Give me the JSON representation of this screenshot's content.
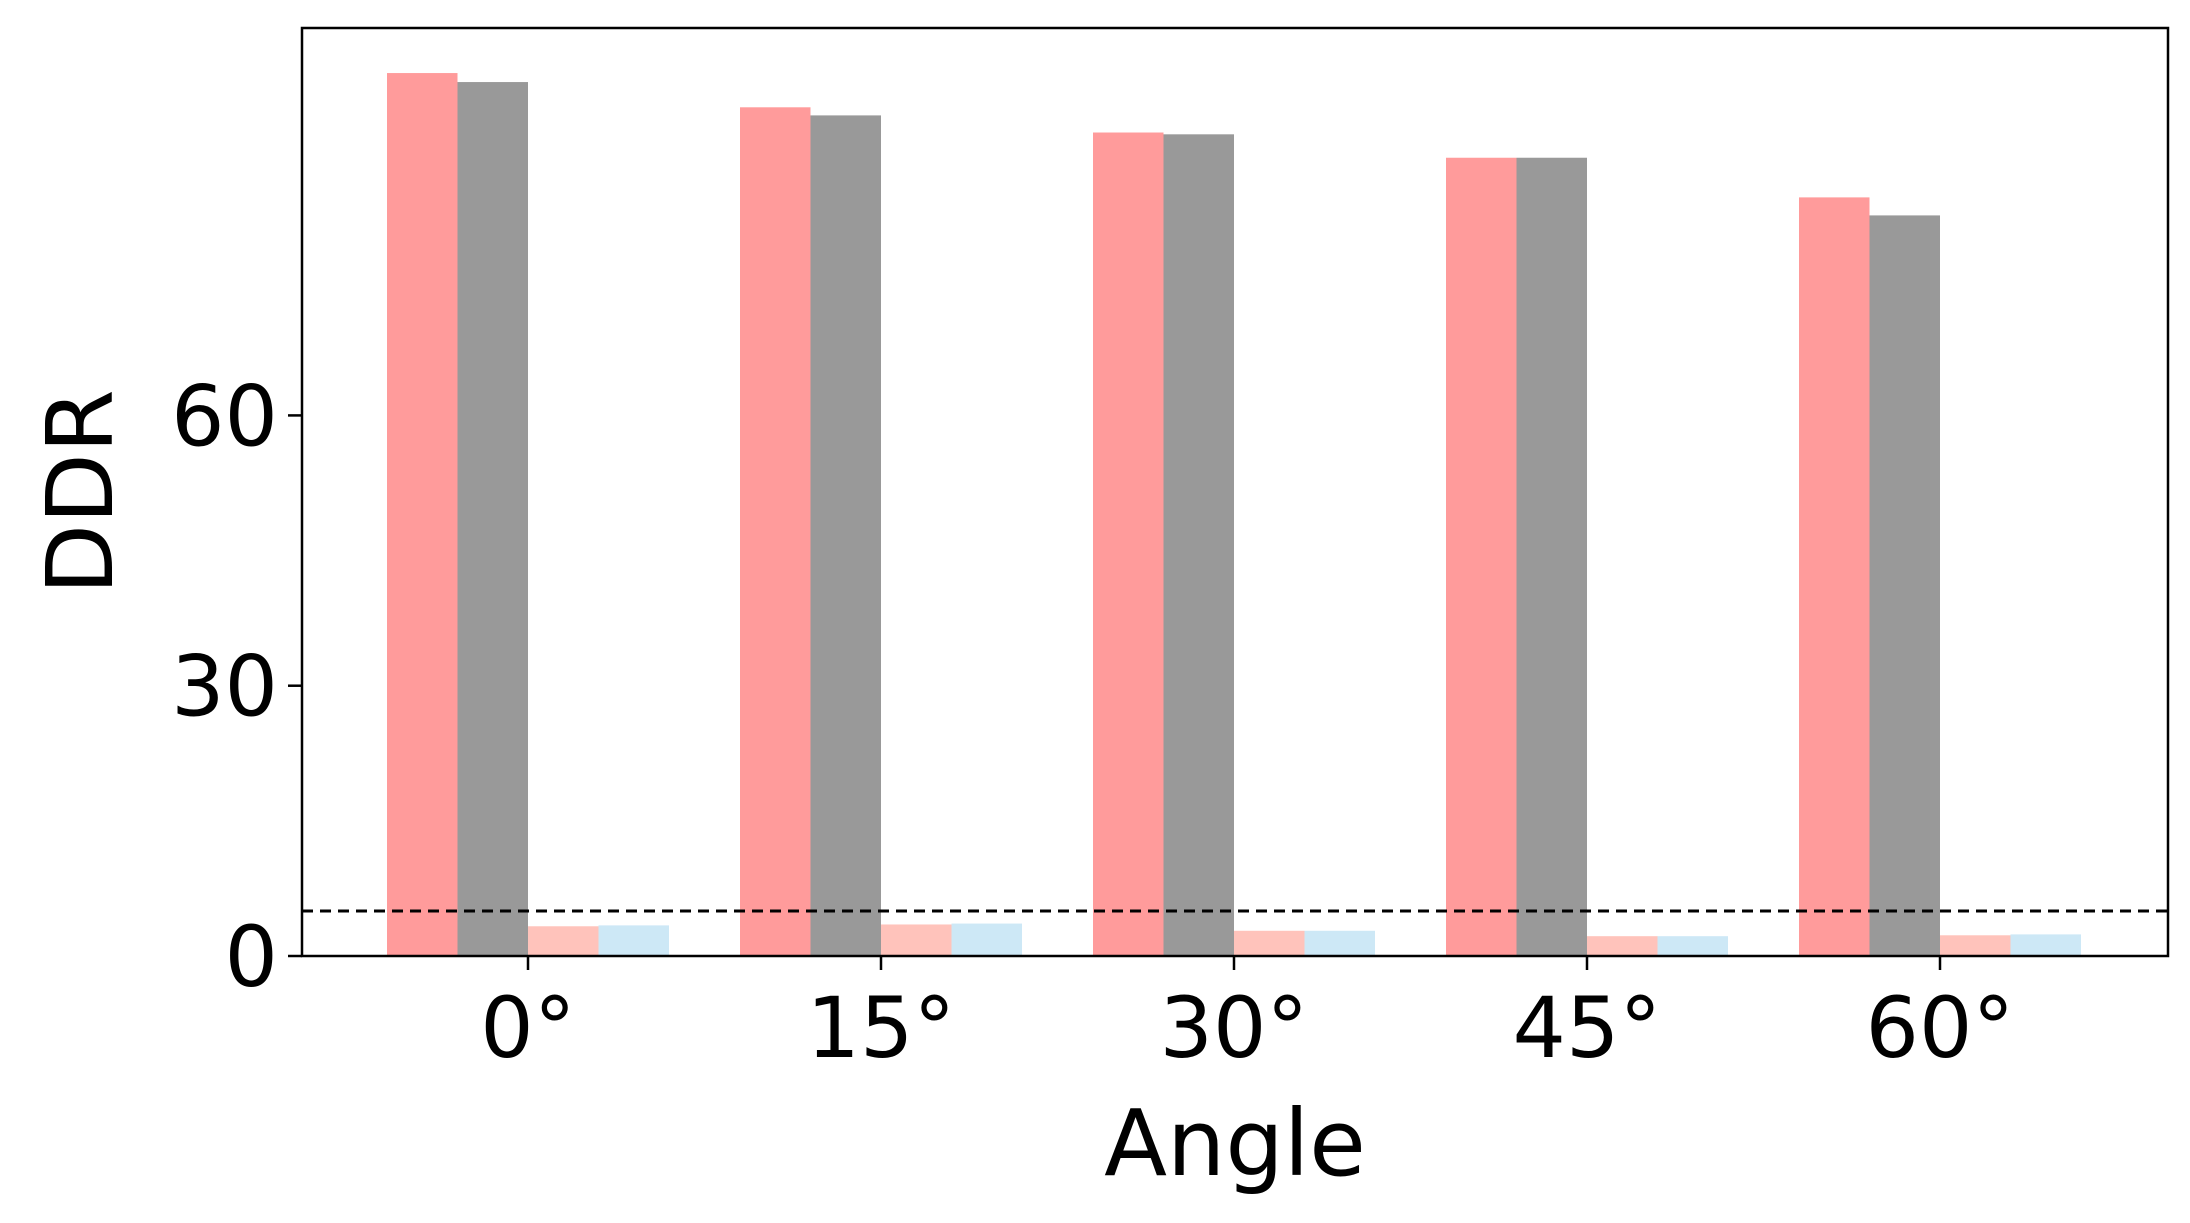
{
  "chart_data": {
    "type": "bar",
    "title": "",
    "xlabel": "Angle",
    "ylabel": "DDR",
    "categories": [
      "0°",
      "15°",
      "30°",
      "45°",
      "60°"
    ],
    "ylim": [
      0,
      103
    ],
    "yticks": [
      0,
      30,
      60
    ],
    "ytick_labels": [
      "0",
      "30",
      "60"
    ],
    "grid": false,
    "legend": "none",
    "series": [
      {
        "color": "#FF9B9B",
        "values": [
          98.0,
          94.2,
          91.4,
          88.6,
          84.2
        ]
      },
      {
        "color": "#999999",
        "values": [
          97.0,
          93.3,
          91.2,
          88.6,
          82.2
        ]
      },
      {
        "color": "#FFC3BB",
        "values": [
          3.3,
          3.5,
          2.8,
          2.2,
          2.3
        ]
      },
      {
        "color": "#CDE8F6",
        "values": [
          3.4,
          3.6,
          2.8,
          2.2,
          2.4
        ]
      }
    ],
    "reference_line": {
      "y": 5.0,
      "style": "dashed",
      "color": "#000000"
    }
  }
}
